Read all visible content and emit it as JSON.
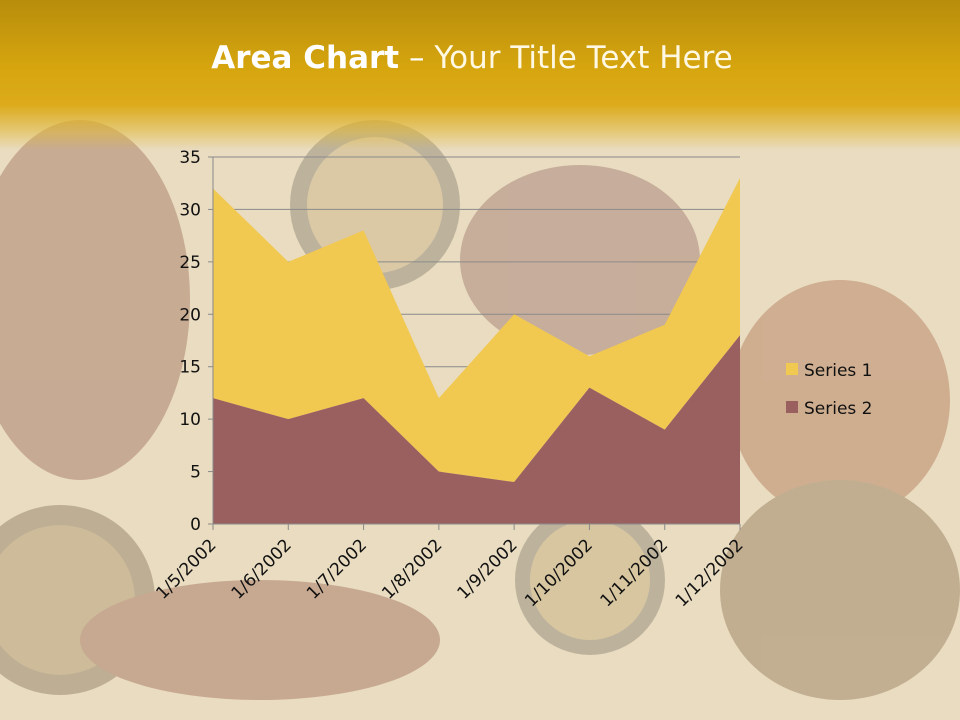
{
  "slide": {
    "title_bold": "Area Chart",
    "title_dash": " – ",
    "title_rest": "Your Title Text Here"
  },
  "colors": {
    "header": "#d6a50e",
    "series1": "#f1c850",
    "series2": "#9a6060",
    "gridline": "#8a8a8a",
    "background": "#e9dcc0"
  },
  "chart_data": {
    "type": "area",
    "title": "",
    "xlabel": "",
    "ylabel": "",
    "stacked": true,
    "categories": [
      "1/5/2002",
      "1/6/2002",
      "1/7/2002",
      "1/8/2002",
      "1/9/2002",
      "1/10/2002",
      "1/11/2002",
      "1/12/2002"
    ],
    "series": [
      {
        "name": "Series 1",
        "values": [
          20,
          15,
          16,
          7,
          16,
          3,
          10,
          15
        ]
      },
      {
        "name": "Series 2",
        "values": [
          12,
          10,
          12,
          5,
          4,
          13,
          9,
          18
        ]
      }
    ],
    "ylim": [
      0,
      35
    ],
    "yticks": [
      0,
      5,
      10,
      15,
      20,
      25,
      30,
      35
    ],
    "grid": true,
    "legend": "right"
  }
}
